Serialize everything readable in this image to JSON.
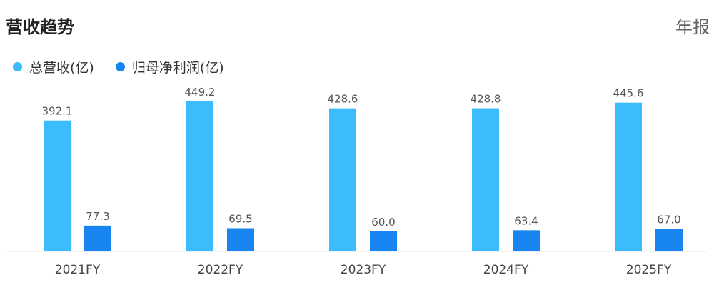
{
  "header": {
    "title": "营收趋势",
    "period": "年报"
  },
  "chart_data": {
    "type": "bar",
    "categories": [
      "2021FY",
      "2022FY",
      "2023FY",
      "2024FY",
      "2025FY"
    ],
    "series": [
      {
        "name": "总营收(亿)",
        "color": "#3bbcfc",
        "values": [
          392.1,
          449.2,
          428.6,
          428.8,
          445.6
        ],
        "labels": [
          "392.1",
          "449.2",
          "428.6",
          "428.8",
          "445.6"
        ]
      },
      {
        "name": "归母净利润(亿)",
        "color": "#1885f0",
        "values": [
          77.3,
          69.5,
          60.0,
          63.4,
          67.0
        ],
        "labels": [
          "77.3",
          "69.5",
          "60.0",
          "63.4",
          "67.0"
        ]
      }
    ],
    "ylim": [
      0,
      460
    ],
    "grid": false,
    "legend": "top-left"
  }
}
